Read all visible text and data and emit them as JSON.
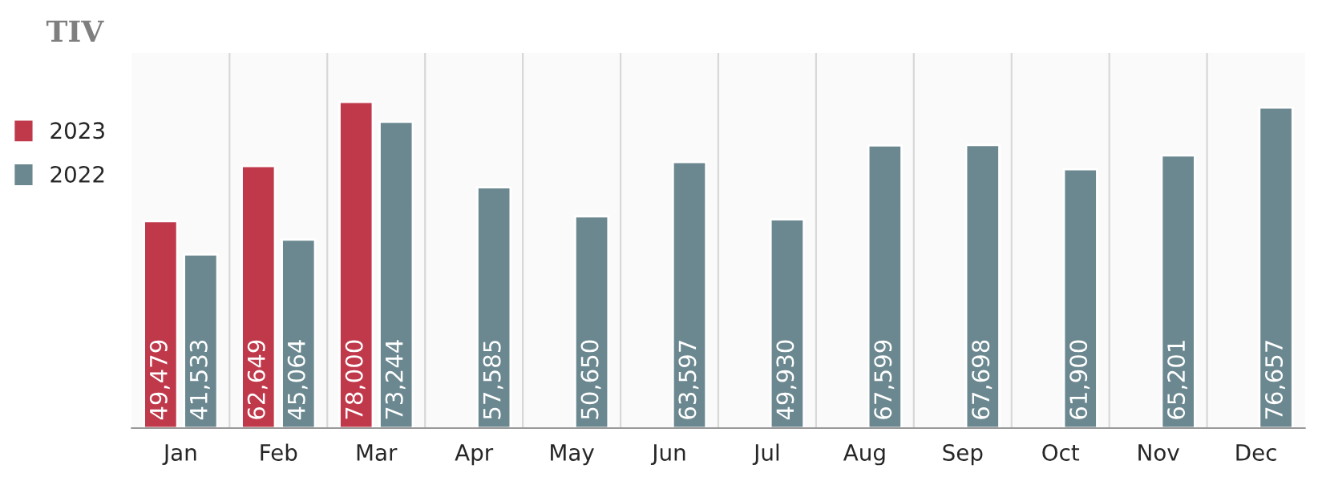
{
  "chart_data": {
    "type": "bar",
    "title": "TIV",
    "categories": [
      "Jan",
      "Feb",
      "Mar",
      "Apr",
      "May",
      "Jun",
      "Jul",
      "Aug",
      "Sep",
      "Oct",
      "Nov",
      "Dec"
    ],
    "series": [
      {
        "name": "2023",
        "color": "#c0394b",
        "values": [
          49479,
          62649,
          78000,
          null,
          null,
          null,
          null,
          null,
          null,
          null,
          null,
          null
        ],
        "value_labels": [
          "49,479",
          "62,649",
          "78,000",
          null,
          null,
          null,
          null,
          null,
          null,
          null,
          null,
          null
        ]
      },
      {
        "name": "2022",
        "color": "#6b8890",
        "values": [
          41533,
          45064,
          73244,
          57585,
          50650,
          63597,
          49930,
          67599,
          67698,
          61900,
          65201,
          76657
        ],
        "value_labels": [
          "41,533",
          "45,064",
          "73,244",
          "57,585",
          "50,650",
          "63,597",
          "49,930",
          "67,599",
          "67,698",
          "61,900",
          "65,201",
          "76,657"
        ]
      }
    ],
    "tick_labels": "x",
    "legend": "left",
    "grid": false
  }
}
